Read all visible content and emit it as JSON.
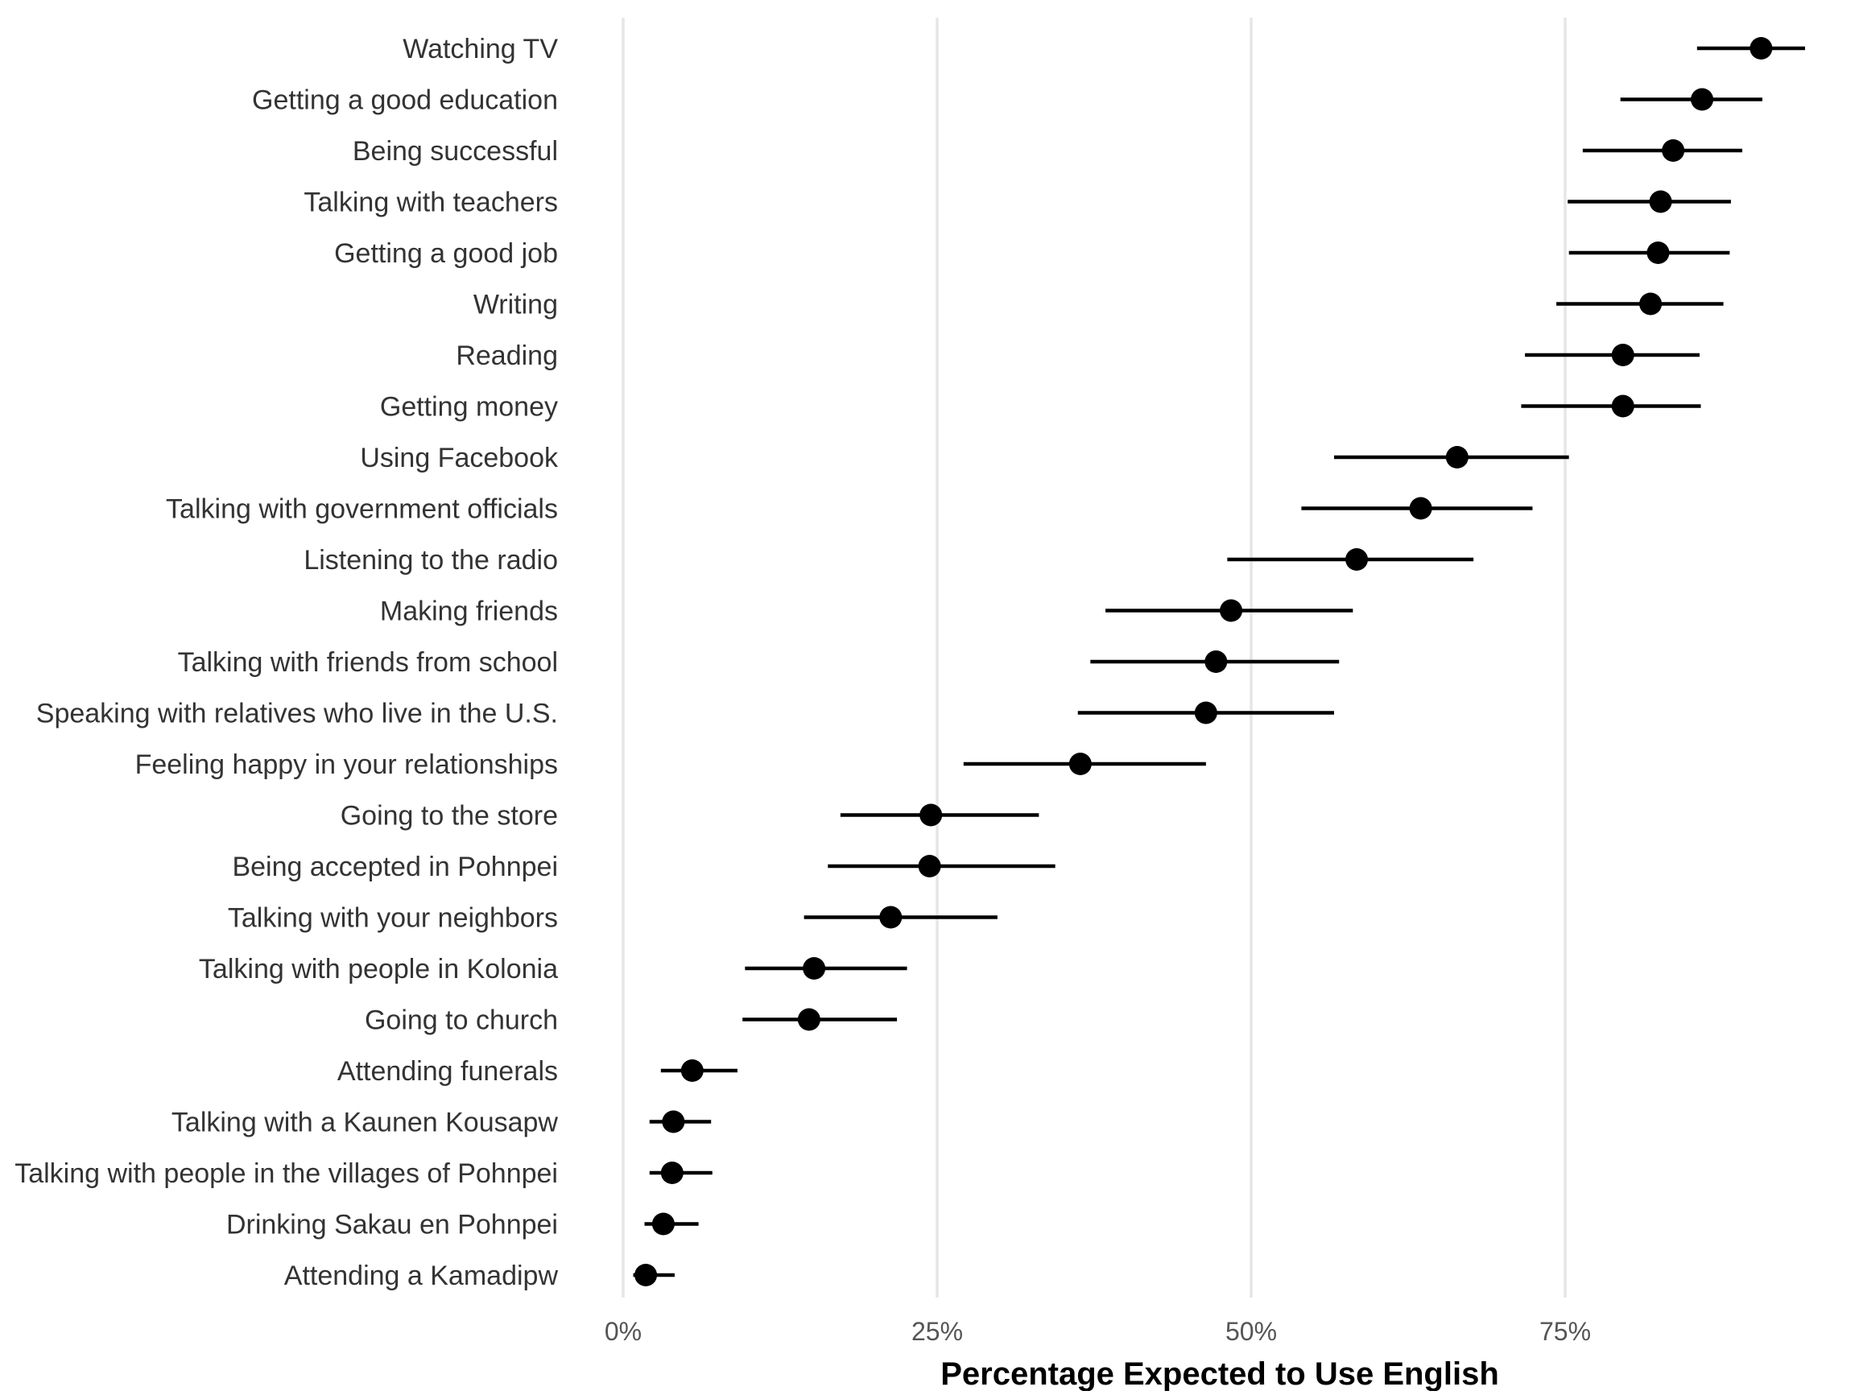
{
  "chart_data": {
    "type": "dot-interval",
    "orientation": "horizontal",
    "xlabel": "Percentage Expected to Use English",
    "ylabel": "",
    "xlim": [
      0,
      0.94
    ],
    "x_ticks": [
      {
        "value": 0,
        "label": "0%"
      },
      {
        "value": 0.25,
        "label": "25%"
      },
      {
        "value": 0.5,
        "label": "50%"
      },
      {
        "value": 0.75,
        "label": "75%"
      }
    ],
    "grid": "vertical-major",
    "legend": "none",
    "point_color": "#000000",
    "categories": [
      "Watching TV",
      "Getting a good education",
      "Being successful",
      "Talking with teachers",
      "Getting a good job",
      "Writing",
      "Reading",
      "Getting money",
      "Using Facebook",
      "Talking with government officials",
      "Listening to the radio",
      "Making friends",
      "Talking with friends from school",
      "Speaking with relatives who live in the U.S.",
      "Feeling happy in your relationships",
      "Going to the store",
      "Being accepted in Pohnpei",
      "Talking with your neighbors",
      "Talking with people in Kolonia",
      "Going to church",
      "Attending funerals",
      "Talking with a Kaunen Kousapw",
      "Talking with people in the villages of Pohnpei",
      "Drinking Sakau en Pohnpei",
      "Attending a Kamadipw"
    ],
    "estimates": [
      0.906,
      0.859,
      0.836,
      0.826,
      0.824,
      0.818,
      0.796,
      0.796,
      0.664,
      0.635,
      0.584,
      0.484,
      0.472,
      0.464,
      0.364,
      0.245,
      0.244,
      0.213,
      0.152,
      0.148,
      0.055,
      0.04,
      0.039,
      0.032,
      0.018
    ],
    "ci_lower": [
      0.855,
      0.794,
      0.764,
      0.752,
      0.753,
      0.743,
      0.718,
      0.715,
      0.566,
      0.54,
      0.481,
      0.384,
      0.372,
      0.362,
      0.271,
      0.173,
      0.163,
      0.144,
      0.097,
      0.095,
      0.03,
      0.021,
      0.021,
      0.017,
      0.008
    ],
    "ci_upper": [
      0.941,
      0.907,
      0.891,
      0.882,
      0.881,
      0.876,
      0.857,
      0.858,
      0.753,
      0.724,
      0.677,
      0.581,
      0.57,
      0.566,
      0.464,
      0.331,
      0.344,
      0.298,
      0.226,
      0.218,
      0.091,
      0.07,
      0.071,
      0.06,
      0.041
    ]
  }
}
